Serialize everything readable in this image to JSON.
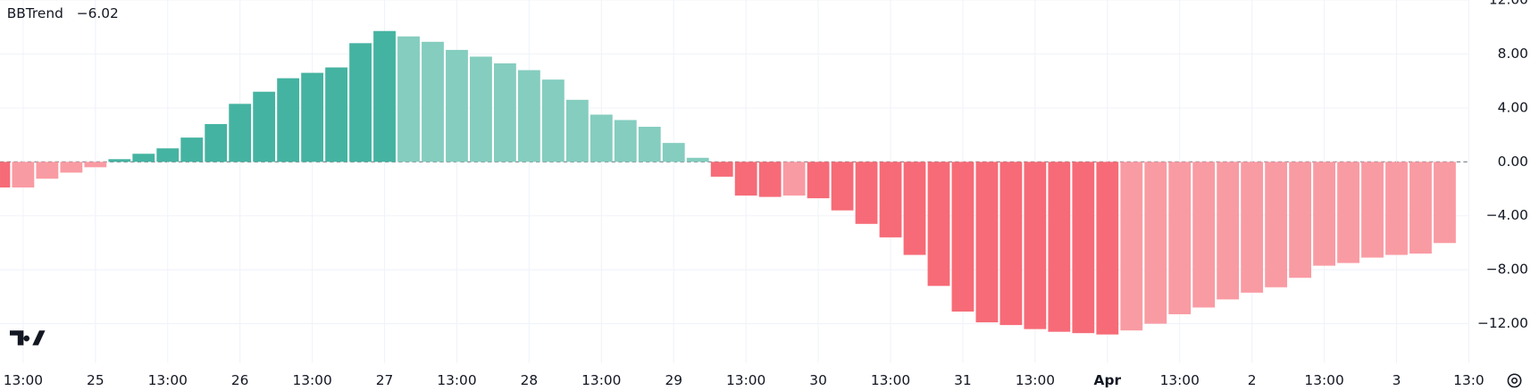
{
  "chart_data": {
    "type": "bar",
    "title": "BBTrend",
    "values": [
      -1.9,
      -1.9,
      -1.25,
      -0.8,
      -0.4,
      0.2,
      0.6,
      1.0,
      1.8,
      2.8,
      4.3,
      5.2,
      6.2,
      6.6,
      7.0,
      8.8,
      9.7,
      9.3,
      8.9,
      8.3,
      7.8,
      7.3,
      6.8,
      6.1,
      4.6,
      3.5,
      3.1,
      2.6,
      1.4,
      0.3,
      -1.1,
      -2.5,
      -2.6,
      -2.5,
      -2.7,
      -3.6,
      -4.6,
      -5.6,
      -6.9,
      -9.2,
      -11.1,
      -11.9,
      -12.1,
      -12.4,
      -12.6,
      -12.7,
      -12.8,
      -12.5,
      -12.0,
      -11.3,
      -10.8,
      -10.2,
      -9.7,
      -9.3,
      -8.6,
      -7.7,
      -7.5,
      -7.1,
      -6.9,
      -6.8,
      -6.02
    ],
    "value_labels": [
      null,
      null,
      null,
      null,
      null,
      null,
      null,
      null,
      null,
      null,
      null,
      null,
      null,
      null,
      null,
      null,
      null,
      null,
      null,
      null,
      null,
      null,
      null,
      null,
      null,
      null,
      null,
      null,
      null,
      null,
      null,
      null,
      null,
      null,
      null,
      null,
      null,
      null,
      null,
      null,
      null,
      null,
      null,
      null,
      null,
      null,
      null,
      null,
      null,
      null,
      null,
      null,
      null,
      null,
      null,
      null,
      null,
      null,
      null,
      null,
      "−6.02"
    ],
    "colors": [
      "#f66b77",
      "#f99ba3",
      "#f99ba3",
      "#f99ba3",
      "#f99ba3",
      "#45b3a1",
      "#45b3a1",
      "#45b3a1",
      "#45b3a1",
      "#45b3a1",
      "#45b3a1",
      "#45b3a1",
      "#45b3a1",
      "#45b3a1",
      "#45b3a1",
      "#45b3a1",
      "#45b3a1",
      "#84cdbf",
      "#84cdbf",
      "#84cdbf",
      "#84cdbf",
      "#84cdbf",
      "#84cdbf",
      "#84cdbf",
      "#84cdbf",
      "#84cdbf",
      "#84cdbf",
      "#84cdbf",
      "#84cdbf",
      "#84cdbf",
      "#f66b77",
      "#f66b77",
      "#f66b77",
      "#f99ba3",
      "#f66b77",
      "#f66b77",
      "#f66b77",
      "#f66b77",
      "#f66b77",
      "#f66b77",
      "#f66b77",
      "#f66b77",
      "#f66b77",
      "#f66b77",
      "#f66b77",
      "#f66b77",
      "#f66b77",
      "#f99ba3",
      "#f99ba3",
      "#f99ba3",
      "#f99ba3",
      "#f99ba3",
      "#f99ba3",
      "#f99ba3",
      "#f99ba3",
      "#f99ba3",
      "#f99ba3",
      "#f99ba3",
      "#f99ba3",
      "#f99ba3",
      "#f99ba3"
    ],
    "value_label_color": "#f23645",
    "xlim": [
      0.04,
      61.02
    ],
    "xticks": [
      {
        "value": 1,
        "label": "13:00"
      },
      {
        "value": 4,
        "label": "25"
      },
      {
        "value": 7,
        "label": "13:00"
      },
      {
        "value": 10,
        "label": "26"
      },
      {
        "value": 13,
        "label": "13:00"
      },
      {
        "value": 16,
        "label": "27"
      },
      {
        "value": 19,
        "label": "13:00"
      },
      {
        "value": 22,
        "label": "28"
      },
      {
        "value": 25,
        "label": "13:00"
      },
      {
        "value": 28,
        "label": "29"
      },
      {
        "value": 31,
        "label": "13:00"
      },
      {
        "value": 34,
        "label": "30"
      },
      {
        "value": 37,
        "label": "13:00"
      },
      {
        "value": 40,
        "label": "31"
      },
      {
        "value": 43,
        "label": "13:00"
      },
      {
        "value": 46,
        "label": "Apr",
        "bold": true
      },
      {
        "value": 49,
        "label": "13:00"
      },
      {
        "value": 52,
        "label": "2"
      },
      {
        "value": 55,
        "label": "13:00"
      },
      {
        "value": 58,
        "label": "3"
      },
      {
        "value": 61,
        "label": "13:0"
      }
    ],
    "ylim": [
      -14.91,
      12.0
    ],
    "yticks": [
      {
        "value": 12,
        "label": "12.00"
      },
      {
        "value": 8,
        "label": "8.00"
      },
      {
        "value": 4,
        "label": "4.00"
      },
      {
        "value": 0,
        "label": "0.00"
      },
      {
        "value": -4,
        "label": "−4.00"
      },
      {
        "value": -8,
        "label": "−8.00"
      },
      {
        "value": -12,
        "label": "−12.00"
      }
    ],
    "grid": true
  }
}
